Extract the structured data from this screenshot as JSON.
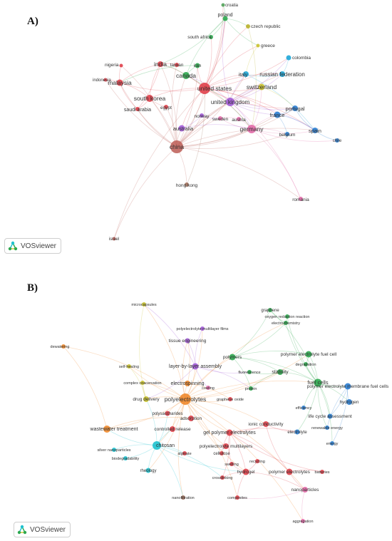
{
  "panelA": {
    "label": "A)",
    "badge": "VOSviewer",
    "nodes": [
      {
        "id": "croatia",
        "label": "croatia",
        "color": "#52a25a"
      },
      {
        "id": "poland",
        "label": "poland",
        "color": "#2ea84f"
      },
      {
        "id": "czech",
        "label": "czech republic",
        "color": "#b8b12a"
      },
      {
        "id": "southafrica",
        "label": "south africa",
        "color": "#2ea84f"
      },
      {
        "id": "greece",
        "label": "greece",
        "color": "#c9c22c"
      },
      {
        "id": "colombia",
        "label": "colombia",
        "color": "#1ea7d8"
      },
      {
        "id": "nigeria",
        "label": "nigeria",
        "color": "#e0404a"
      },
      {
        "id": "india",
        "label": "india",
        "color": "#e0404a"
      },
      {
        "id": "taiwan",
        "label": "taiwan",
        "color": "#e0404a"
      },
      {
        "id": "iran",
        "label": "iran",
        "color": "#2ea84f"
      },
      {
        "id": "italy",
        "label": "italy",
        "color": "#1ea7d8"
      },
      {
        "id": "russia",
        "label": "russian federation",
        "color": "#1ea7d8"
      },
      {
        "id": "indonesia",
        "label": "indonesia",
        "color": "#e0404a"
      },
      {
        "id": "malaysia",
        "label": "malaysia",
        "color": "#e0404a"
      },
      {
        "id": "canada",
        "label": "canada",
        "color": "#2ea84f"
      },
      {
        "id": "switzerland",
        "label": "switzerland",
        "color": "#c9c22c"
      },
      {
        "id": "usa",
        "label": "united states",
        "color": "#e0404a"
      },
      {
        "id": "uk",
        "label": "united kingdom",
        "color": "#a15ad6"
      },
      {
        "id": "southkorea",
        "label": "south korea",
        "color": "#e0404a"
      },
      {
        "id": "saudi",
        "label": "saudi arabia",
        "color": "#e0404a"
      },
      {
        "id": "egypt",
        "label": "egypt",
        "color": "#e0404a"
      },
      {
        "id": "portugal",
        "label": "portugal",
        "color": "#2a7dd1"
      },
      {
        "id": "france",
        "label": "france",
        "color": "#2a7dd1"
      },
      {
        "id": "norway",
        "label": "norway",
        "color": "#a15ad6"
      },
      {
        "id": "sweden",
        "label": "sweden",
        "color": "#e26aa8"
      },
      {
        "id": "austria",
        "label": "austria",
        "color": "#e26aa8"
      },
      {
        "id": "australia",
        "label": "australia",
        "color": "#a15ad6"
      },
      {
        "id": "germany",
        "label": "germany",
        "color": "#e26aa8"
      },
      {
        "id": "spain",
        "label": "spain",
        "color": "#2a7dd1"
      },
      {
        "id": "belgium",
        "label": "belgium",
        "color": "#2a7dd1"
      },
      {
        "id": "chile",
        "label": "chile",
        "color": "#2a7dd1"
      },
      {
        "id": "china",
        "label": "china",
        "color": "#c0655e"
      },
      {
        "id": "hongkong",
        "label": "hong kong",
        "color": "#9e6f5b"
      },
      {
        "id": "romania",
        "label": "romania",
        "color": "#e26aa8"
      },
      {
        "id": "israel",
        "label": "israel",
        "color": "#c0655e"
      }
    ]
  },
  "panelB": {
    "label": "B)",
    "badge": "VOSviewer",
    "nodes": [
      {
        "id": "microcapsules",
        "label": "microcapsules",
        "color": "#c9c22c"
      },
      {
        "id": "graphene",
        "label": "graphene",
        "color": "#2ea84f"
      },
      {
        "id": "orr",
        "label": "oxygen reduction reaction",
        "color": "#2ea84f"
      },
      {
        "id": "electrochem",
        "label": "electrochemistry",
        "color": "#2ea84f"
      },
      {
        "id": "pemfilms",
        "label": "polyelectrolyte multilayer films",
        "color": "#a15ad6"
      },
      {
        "id": "tissue",
        "label": "tissue engineering",
        "color": "#a15ad6"
      },
      {
        "id": "dewatering",
        "label": "dewatering",
        "color": "#f08a2c"
      },
      {
        "id": "polymers",
        "label": "polymers",
        "color": "#2ea84f"
      },
      {
        "id": "pefuelcell",
        "label": "polymer electrolyte fuel cell",
        "color": "#2ea84f"
      },
      {
        "id": "selfhealing",
        "label": "self-healing",
        "color": "#c9c22c"
      },
      {
        "id": "lbl",
        "label": "layer-by-layer assembly",
        "color": "#a15ad6"
      },
      {
        "id": "degradation",
        "label": "degradation",
        "color": "#2ea84f"
      },
      {
        "id": "fluorescence",
        "label": "fluorescence",
        "color": "#2ea84f"
      },
      {
        "id": "stability",
        "label": "stability",
        "color": "#2ea84f"
      },
      {
        "id": "fuelcells",
        "label": "fuel cells",
        "color": "#2ea84f"
      },
      {
        "id": "complexcoac",
        "label": "complex coacervation",
        "color": "#c9c22c"
      },
      {
        "id": "electrospinning",
        "label": "electrospinning",
        "color": "#f08a2c"
      },
      {
        "id": "coating",
        "label": "coating",
        "color": "#e26aa8"
      },
      {
        "id": "protein",
        "label": "protein",
        "color": "#2ea84f"
      },
      {
        "id": "pemfc",
        "label": "polymer electrolyte membrane fuel cells",
        "color": "#2a7dd1"
      },
      {
        "id": "drugdelivery",
        "label": "drug delivery",
        "color": "#c9c22c"
      },
      {
        "id": "polyelectrolytes",
        "label": "polyelectrolytes",
        "color": "#f08a2c"
      },
      {
        "id": "grapheneoxide",
        "label": "graphene oxide",
        "color": "#e0404a"
      },
      {
        "id": "hydrogen",
        "label": "hydrogen",
        "color": "#2a7dd1"
      },
      {
        "id": "efficiency",
        "label": "efficiency",
        "color": "#2a7dd1"
      },
      {
        "id": "lca",
        "label": "life cycle assessment",
        "color": "#2a7dd1"
      },
      {
        "id": "polysaccharides",
        "label": "polysaccharides",
        "color": "#e0404a"
      },
      {
        "id": "adsorption",
        "label": "adsorption",
        "color": "#e0404a"
      },
      {
        "id": "ionic",
        "label": "ionic conductivity",
        "color": "#e0404a"
      },
      {
        "id": "renewable",
        "label": "renewable energy",
        "color": "#2a7dd1"
      },
      {
        "id": "wastewater",
        "label": "wastewater treatment",
        "color": "#f08a2c"
      },
      {
        "id": "controlled",
        "label": "controlled release",
        "color": "#e0404a"
      },
      {
        "id": "gpe",
        "label": "gel polymer electrolytes",
        "color": "#e0404a"
      },
      {
        "id": "electrolyte",
        "label": "electrolyte",
        "color": "#2a7dd1"
      },
      {
        "id": "chitosan",
        "label": "chitosan",
        "color": "#1ec2cf"
      },
      {
        "id": "pmultilayers",
        "label": "polyelectrolyte multilayers",
        "color": "#e0404a"
      },
      {
        "id": "energy",
        "label": "energy",
        "color": "#2a7dd1"
      },
      {
        "id": "silvernp",
        "label": "silver nanoparticles",
        "color": "#1ec2cf"
      },
      {
        "id": "alginate",
        "label": "alginate",
        "color": "#e0404a"
      },
      {
        "id": "cellulose",
        "label": "cellulose",
        "color": "#e0404a"
      },
      {
        "id": "biodegradability",
        "label": "biodegradability",
        "color": "#1ec2cf"
      },
      {
        "id": "recycling",
        "label": "recycling",
        "color": "#e0404a"
      },
      {
        "id": "swelling",
        "label": "swelling",
        "color": "#e0404a"
      },
      {
        "id": "hydrogel",
        "label": "hydrogel",
        "color": "#e0404a"
      },
      {
        "id": "polymerelectrolytes",
        "label": "polymer electrolytes",
        "color": "#e0404a"
      },
      {
        "id": "batteries",
        "label": "batteries",
        "color": "#e0404a"
      },
      {
        "id": "rheology",
        "label": "rheology",
        "color": "#1ec2cf"
      },
      {
        "id": "crosslinking",
        "label": "crosslinking",
        "color": "#e0404a"
      },
      {
        "id": "nanoparticles",
        "label": "nanoparticles",
        "color": "#e26aa8"
      },
      {
        "id": "nanofiltration",
        "label": "nanofiltration",
        "color": "#9e6f5b"
      },
      {
        "id": "composites",
        "label": "composites",
        "color": "#e0404a"
      },
      {
        "id": "aggregation",
        "label": "aggregation",
        "color": "#e26aa8"
      }
    ]
  }
}
